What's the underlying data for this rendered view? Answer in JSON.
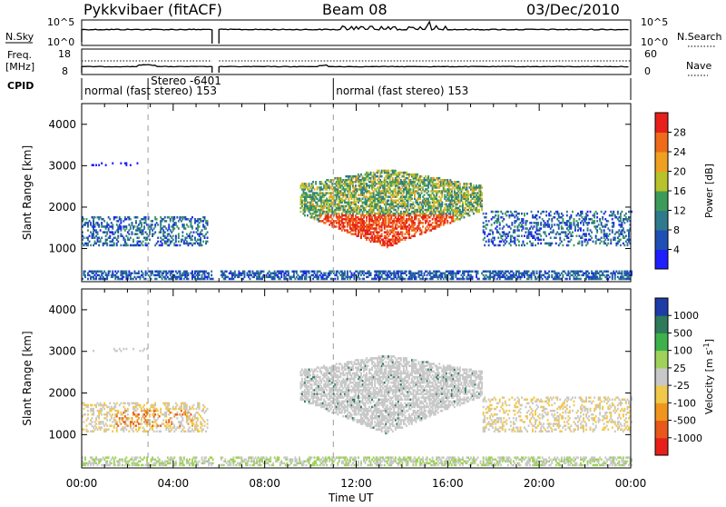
{
  "header": {
    "station": "Pykkvibaer (fitACF)",
    "beam": "Beam 08",
    "date": "03/Dec/2010"
  },
  "strips": {
    "nsky_label": "N.Sky",
    "nsky_ticks": [
      "10^5",
      "10^0"
    ],
    "nsearch_label": "N.Search",
    "nsearch_ticks": [
      "10^5",
      "10^0"
    ],
    "freq_label_1": "Freq.",
    "freq_label_2": "[MHz]",
    "freq_ticks": [
      "18",
      "8"
    ],
    "nave_label": "Nave",
    "nave_ticks": [
      "60",
      "0"
    ],
    "cpid_label": "CPID",
    "cpid_segments": [
      {
        "start": 0.0,
        "text": "normal (fast stereo) 153"
      },
      {
        "start": 2.9,
        "text": "Stereo -6401"
      },
      {
        "start": 11.0,
        "text": "normal (fast stereo) 153"
      }
    ]
  },
  "chart_data": [
    {
      "type": "heatmap",
      "name": "power",
      "ylabel": "Slant Range [km]",
      "ylim": [
        200,
        4500
      ],
      "yticks": [
        1000,
        2000,
        3000,
        4000
      ],
      "xlim": [
        0,
        24
      ],
      "xlabel": "Time UT",
      "xticks": [
        "00:00",
        "04:00",
        "08:00",
        "12:00",
        "16:00",
        "20:00",
        "00:00"
      ],
      "colorbar": {
        "label": "Power [dB]",
        "ticks": [
          "4",
          "8",
          "12",
          "16",
          "20",
          "24",
          "28"
        ],
        "colors": [
          "#1e1eff",
          "#1e4fb4",
          "#2e7a8c",
          "#3d9b5a",
          "#b8c22a",
          "#f0a020",
          "#ef6a1a",
          "#e8201a"
        ]
      },
      "data_gap": [
        5.7,
        6.0
      ]
    },
    {
      "type": "heatmap",
      "name": "velocity",
      "ylabel": "Slant Range [km]",
      "ylim": [
        200,
        4500
      ],
      "yticks": [
        1000,
        2000,
        3000,
        4000
      ],
      "xlim": [
        0,
        24
      ],
      "xlabel": "Time UT",
      "xticks": [
        "00:00",
        "04:00",
        "08:00",
        "12:00",
        "16:00",
        "20:00",
        "00:00"
      ],
      "colorbar": {
        "label": "Velocity [m s",
        "label_sup": "-1",
        "label_end": "]",
        "ticks": [
          "1000",
          "500",
          "100",
          "25",
          "-25",
          "-100",
          "-500",
          "-1000"
        ],
        "colors": [
          "#1e3ca8",
          "#2e7a5a",
          "#3db24a",
          "#9ed25a",
          "#c8c8c8",
          "#f2c84a",
          "#f0961e",
          "#e8581a",
          "#e8201a"
        ]
      },
      "data_gap": [
        5.7,
        6.0
      ]
    }
  ]
}
